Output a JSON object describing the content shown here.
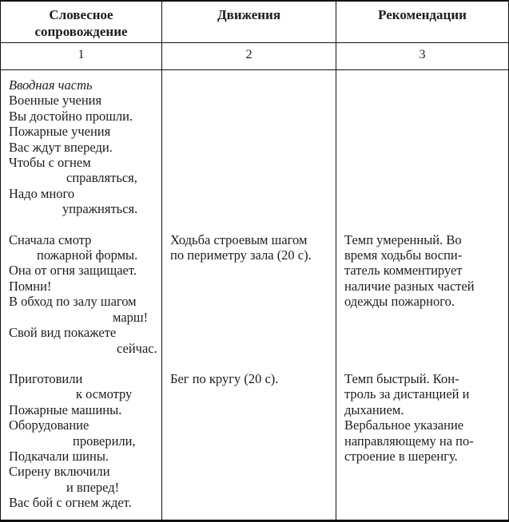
{
  "colors": {
    "text": "#1c1c1c",
    "border": "#111111",
    "background": "#ffffff"
  },
  "table": {
    "header": {
      "verbal": "Словесное\nсопровождение",
      "movements": "Движения",
      "recommendations": "Рекомендации"
    },
    "numbers": {
      "verbal": "1",
      "movements": "2",
      "recommendations": "3"
    },
    "body": {
      "rows": [
        {
          "verbal": [
            {
              "t": "Вводная часть",
              "it": true
            },
            {
              "t": "Военные учения"
            },
            {
              "t": "Вы достойно прошли."
            },
            {
              "t": "Пожарные учения"
            },
            {
              "t": "Вас ждут впереди."
            },
            {
              "t": "Чтобы с огнем"
            },
            {
              "t": "справляться,",
              "i": 72
            },
            {
              "t": "Надо много"
            },
            {
              "t": "упражняться.",
              "i": 67
            }
          ],
          "movements": [],
          "recommendations": []
        },
        {
          "verbal": [
            {
              "t": "Сначала смотр"
            },
            {
              "t": "пожарной формы.",
              "i": 35
            },
            {
              "t": "Она от огня защищает."
            },
            {
              "t": "Помни!"
            },
            {
              "t": "В обход по залу шагом"
            },
            {
              "t": "марш!",
              "i": 130
            },
            {
              "t": "Свой вид покажете"
            },
            {
              "t": "сейчас.",
              "i": 135
            }
          ],
          "movements": [
            {
              "t": "Ходьба строевым шагом"
            },
            {
              "t": "по периметру зала (20 с)."
            }
          ],
          "recommendations": [
            {
              "t": "Темп умеренный. Во"
            },
            {
              "t": "время ходьбы воспи-"
            },
            {
              "t": "татель комментирует"
            },
            {
              "t": "наличие разных частей"
            },
            {
              "t": "одежды пожарного."
            }
          ]
        },
        {
          "verbal": [
            {
              "t": "Приготовили"
            },
            {
              "t": "к осмотру",
              "i": 84
            },
            {
              "t": "Пожарные машины."
            },
            {
              "t": "Оборудование"
            },
            {
              "t": "проверили,",
              "i": 80
            },
            {
              "t": "Подкачали шины."
            },
            {
              "t": "Сирену включили"
            },
            {
              "t": "и вперед!",
              "i": 72
            },
            {
              "t": "Вас бой с огнем ждет."
            }
          ],
          "movements": [
            {
              "t": "Бег по кругу (20 с)."
            }
          ],
          "recommendations": [
            {
              "t": "Темп быстрый. Кон-"
            },
            {
              "t": "троль за дистанцией и"
            },
            {
              "t": "дыханием."
            },
            {
              "t": "Вербальное указание"
            },
            {
              "t": "направляющему на по-"
            },
            {
              "t": "строение в шеренгу."
            }
          ]
        }
      ]
    }
  }
}
